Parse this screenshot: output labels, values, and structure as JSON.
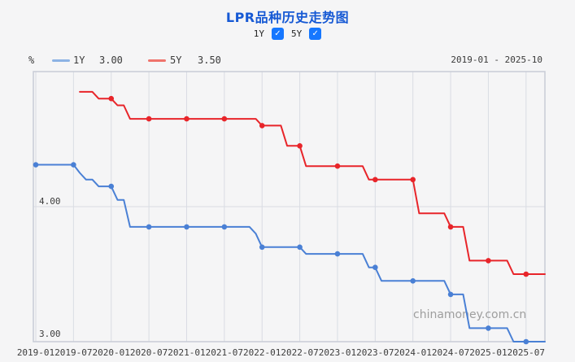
{
  "page": {
    "title": "LPR品种历史走势图"
  },
  "controls": {
    "check_glyph": "✓",
    "checkboxes": [
      {
        "label": "1Y",
        "checked": true
      },
      {
        "label": "5Y",
        "checked": true
      }
    ]
  },
  "legend": {
    "unit": "%",
    "items": [
      {
        "label": "1Y",
        "value": "3.00",
        "color": "#8cb3e4"
      },
      {
        "label": "5Y",
        "value": "3.50",
        "color": "#ef736c"
      }
    ],
    "range": "2019-01 - 2025-10"
  },
  "chart_data": {
    "type": "line",
    "title": "LPR品种历史走势图",
    "ylabel": "%",
    "x_start": "2019-01",
    "x_end": "2025-10",
    "x_tick_labels": [
      "2019-01",
      "2019-07",
      "2020-01",
      "2020-07",
      "2021-01",
      "2021-07",
      "2022-01",
      "2022-07",
      "2023-01",
      "2023-07",
      "2024-01",
      "2024-07",
      "2025-01",
      "2025-07"
    ],
    "x_tick_indices": [
      0,
      6,
      12,
      18,
      24,
      30,
      36,
      42,
      48,
      54,
      60,
      66,
      72,
      78
    ],
    "ylim": [
      3.0,
      5.0
    ],
    "y_tick_labels": [
      "4.00",
      "3.00"
    ],
    "y_tick_values": [
      4.0,
      3.0
    ],
    "y_gridline_values": [
      4.0
    ],
    "marker_every": 6,
    "grid": true,
    "legend_position": "top",
    "watermark": "chinamoney.com.cn",
    "series": [
      {
        "name": "1Y",
        "color": "#4a80d5",
        "current_value": "3.00",
        "values": [
          4.31,
          4.31,
          4.31,
          4.31,
          4.31,
          4.31,
          4.31,
          4.25,
          4.2,
          4.2,
          4.15,
          4.15,
          4.15,
          4.05,
          4.05,
          3.85,
          3.85,
          3.85,
          3.85,
          3.85,
          3.85,
          3.85,
          3.85,
          3.85,
          3.85,
          3.85,
          3.85,
          3.85,
          3.85,
          3.85,
          3.85,
          3.85,
          3.85,
          3.85,
          3.85,
          3.8,
          3.7,
          3.7,
          3.7,
          3.7,
          3.7,
          3.7,
          3.7,
          3.65,
          3.65,
          3.65,
          3.65,
          3.65,
          3.65,
          3.65,
          3.65,
          3.65,
          3.65,
          3.55,
          3.55,
          3.45,
          3.45,
          3.45,
          3.45,
          3.45,
          3.45,
          3.45,
          3.45,
          3.45,
          3.45,
          3.45,
          3.35,
          3.35,
          3.35,
          3.1,
          3.1,
          3.1,
          3.1,
          3.1,
          3.1,
          3.1,
          3.0,
          3.0,
          3.0,
          3.0,
          3.0,
          3.0
        ]
      },
      {
        "name": "5Y",
        "color": "#e8252a",
        "current_value": "3.50",
        "values": [
          null,
          null,
          null,
          null,
          null,
          null,
          null,
          4.85,
          4.85,
          4.85,
          4.8,
          4.8,
          4.8,
          4.75,
          4.75,
          4.65,
          4.65,
          4.65,
          4.65,
          4.65,
          4.65,
          4.65,
          4.65,
          4.65,
          4.65,
          4.65,
          4.65,
          4.65,
          4.65,
          4.65,
          4.65,
          4.65,
          4.65,
          4.65,
          4.65,
          4.65,
          4.6,
          4.6,
          4.6,
          4.6,
          4.45,
          4.45,
          4.45,
          4.3,
          4.3,
          4.3,
          4.3,
          4.3,
          4.3,
          4.3,
          4.3,
          4.3,
          4.3,
          4.2,
          4.2,
          4.2,
          4.2,
          4.2,
          4.2,
          4.2,
          4.2,
          3.95,
          3.95,
          3.95,
          3.95,
          3.95,
          3.85,
          3.85,
          3.85,
          3.6,
          3.6,
          3.6,
          3.6,
          3.6,
          3.6,
          3.6,
          3.5,
          3.5,
          3.5,
          3.5,
          3.5,
          3.5
        ]
      }
    ],
    "colors": {
      "gridline": "#d9dce3",
      "border": "#c8ccd6",
      "axis_text": "#3c3c3c",
      "watermark": "#9e9e9e",
      "background": "#f5f5f6"
    }
  }
}
